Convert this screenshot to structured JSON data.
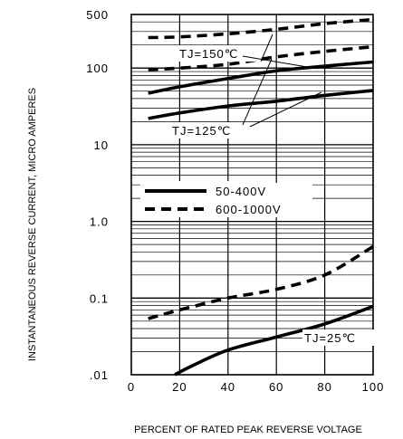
{
  "chart_data": {
    "type": "line",
    "title": "",
    "xlabel": "PERCENT OF RATED PEAK REVERSE VOLTAGE",
    "ylabel": "INSTANTANEOUS REVERSE CURRENT, MICRO AMPERES",
    "x_scale": "linear",
    "y_scale": "log",
    "xlim": [
      0,
      100
    ],
    "ylim": [
      0.01,
      500
    ],
    "x_ticks": [
      0,
      20,
      40,
      60,
      80,
      100
    ],
    "x_tick_labels": [
      "0",
      "20",
      "40",
      "60",
      "80",
      "100"
    ],
    "y_ticks": [
      0.01,
      0.1,
      1,
      10,
      100,
      500
    ],
    "y_tick_labels": [
      ".01",
      "0.1",
      "1.0",
      "10",
      "100",
      "500"
    ],
    "grid": true,
    "legend": {
      "position": "center-right",
      "entries": [
        {
          "label": "50-400V",
          "style": "solid"
        },
        {
          "label": "600-1000V",
          "style": "dashed"
        }
      ]
    },
    "annotations": [
      {
        "text": "TJ=150℃"
      },
      {
        "text": "TJ=125℃"
      },
      {
        "text": "TJ=25℃"
      }
    ],
    "series": [
      {
        "group": "150C",
        "style": "dashed",
        "x": [
          7,
          20,
          40,
          60,
          80,
          100
        ],
        "y": [
          250,
          255,
          280,
          320,
          380,
          430
        ]
      },
      {
        "group": "150C",
        "style": "dashed",
        "x": [
          7,
          20,
          40,
          60,
          80,
          100
        ],
        "y": [
          95,
          100,
          112,
          140,
          165,
          190
        ]
      },
      {
        "group": "150C",
        "style": "solid",
        "x": [
          7,
          20,
          40,
          60,
          80,
          100
        ],
        "y": [
          47,
          57,
          73,
          92,
          106,
          120
        ]
      },
      {
        "group": "125C",
        "style": "solid",
        "x": [
          7,
          20,
          40,
          60,
          80,
          100
        ],
        "y": [
          22,
          26,
          32,
          37,
          44,
          51
        ]
      },
      {
        "group": "25C",
        "style": "dashed",
        "x": [
          7,
          20,
          40,
          60,
          80,
          100
        ],
        "y": [
          0.054,
          0.07,
          0.1,
          0.13,
          0.2,
          0.47
        ]
      },
      {
        "group": "25C",
        "style": "solid",
        "x": [
          18,
          25,
          40,
          60,
          80,
          100
        ],
        "y": [
          0.01,
          0.013,
          0.021,
          0.031,
          0.046,
          0.078
        ]
      }
    ]
  }
}
